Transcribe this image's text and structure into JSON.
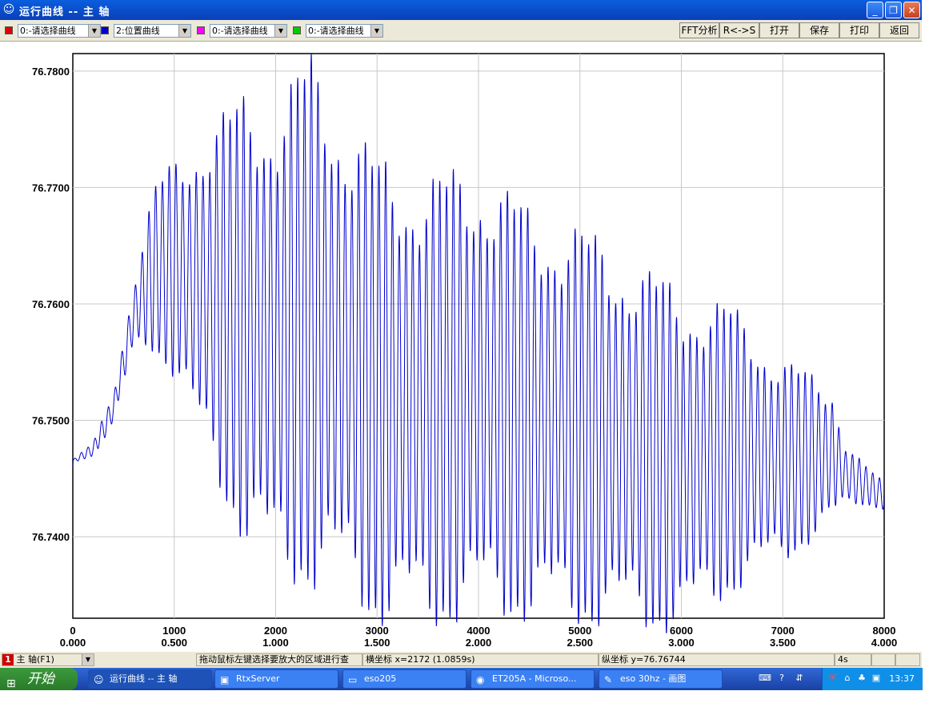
{
  "window": {
    "title": "运行曲线 -- 主  轴",
    "min_glyph": "_",
    "max_glyph": "❐",
    "close_glyph": "✕"
  },
  "toolbar": {
    "selectors": [
      {
        "color": "#e00000",
        "value": "0:-请选择曲线"
      },
      {
        "color": "#0000cc",
        "value": "2:位置曲线"
      },
      {
        "color": "#ff00ff",
        "value": "0:-请选择曲线"
      },
      {
        "color": "#00cc00",
        "value": "0:-请选择曲线"
      }
    ],
    "buttons": [
      "FFT分析",
      "R<->S",
      "打开",
      "保存",
      "打印",
      "返回"
    ]
  },
  "chart_data": {
    "type": "line",
    "series": [
      {
        "color": "#0000cc"
      }
    ],
    "xlim": [
      0,
      8000
    ],
    "ylim": [
      76.733,
      76.7815
    ],
    "x_ticks": [
      0,
      1000,
      2000,
      3000,
      4000,
      5000,
      6000,
      7000,
      8000
    ],
    "x_tick_labels": [
      "0",
      "1000",
      "2000",
      "3000",
      "4000",
      "5000",
      "6000",
      "7000",
      "8000"
    ],
    "x_tick_labels2": [
      "0.000",
      "0.500",
      "1.000",
      "1.500",
      "2.000",
      "2.500",
      "3.000",
      "3.500",
      "4.000"
    ],
    "y_ticks": [
      76.74,
      76.75,
      76.76,
      76.77,
      76.78
    ],
    "y_tick_labels": [
      "76.7400",
      "76.7500",
      "76.7600",
      "76.7700",
      "76.7800"
    ],
    "grid": true,
    "oscillation_period_x": 66.7,
    "start_value": 76.746,
    "end_value": 76.7435,
    "envelope": [
      {
        "x": 0,
        "center": 76.7465,
        "amplitude": 0.0001
      },
      {
        "x": 200,
        "center": 76.7475,
        "amplitude": 0.0005
      },
      {
        "x": 400,
        "center": 76.751,
        "amplitude": 0.0012
      },
      {
        "x": 600,
        "center": 76.759,
        "amplitude": 0.0025
      },
      {
        "x": 800,
        "center": 76.763,
        "amplitude": 0.006
      },
      {
        "x": 1000,
        "center": 76.763,
        "amplitude": 0.008
      },
      {
        "x": 1300,
        "center": 76.761,
        "amplitude": 0.012
      },
      {
        "x": 1700,
        "center": 76.7585,
        "amplitude": 0.0165
      },
      {
        "x": 2000,
        "center": 76.757,
        "amplitude": 0.0175
      },
      {
        "x": 2350,
        "center": 76.7585,
        "amplitude": 0.0195
      },
      {
        "x": 2700,
        "center": 76.7555,
        "amplitude": 0.0175
      },
      {
        "x": 3000,
        "center": 76.7525,
        "amplitude": 0.017
      },
      {
        "x": 3500,
        "center": 76.7515,
        "amplitude": 0.0165
      },
      {
        "x": 4000,
        "center": 76.7525,
        "amplitude": 0.0165
      },
      {
        "x": 4500,
        "center": 76.7505,
        "amplitude": 0.015
      },
      {
        "x": 5000,
        "center": 76.7495,
        "amplitude": 0.0145
      },
      {
        "x": 5500,
        "center": 76.748,
        "amplitude": 0.0135
      },
      {
        "x": 6000,
        "center": 76.7465,
        "amplitude": 0.0125
      },
      {
        "x": 6500,
        "center": 76.7475,
        "amplitude": 0.0105
      },
      {
        "x": 7000,
        "center": 76.7465,
        "amplitude": 0.0075
      },
      {
        "x": 7500,
        "center": 76.747,
        "amplitude": 0.005
      },
      {
        "x": 7600,
        "center": 76.7455,
        "amplitude": 0.0025
      },
      {
        "x": 7800,
        "center": 76.7445,
        "amplitude": 0.0015
      },
      {
        "x": 8000,
        "center": 76.7435,
        "amplitude": 0.001
      }
    ]
  },
  "statusbar": {
    "axis_badge": "1",
    "axis_select": "主  轴(F1)",
    "hint": "拖动鼠标左键选择要放大的区域进行查",
    "x_readout": "横坐标 x=2172 (1.0859s)",
    "y_readout": "纵坐标 y=76.76744",
    "duration": "4s"
  },
  "taskbar": {
    "start_label": "开始",
    "tasks": [
      {
        "label": "运行曲线 -- 主  轴",
        "icon": "☺"
      },
      {
        "label": "RtxServer",
        "icon": "▣"
      },
      {
        "label": "eso205",
        "icon": "▭"
      },
      {
        "label": "ET205A - Microso...",
        "icon": "◉"
      },
      {
        "label": "eso 30hz - 画图",
        "icon": "✎"
      }
    ],
    "clock": "13:37",
    "tray_icons": [
      "⌨",
      "?",
      "⇵"
    ]
  }
}
